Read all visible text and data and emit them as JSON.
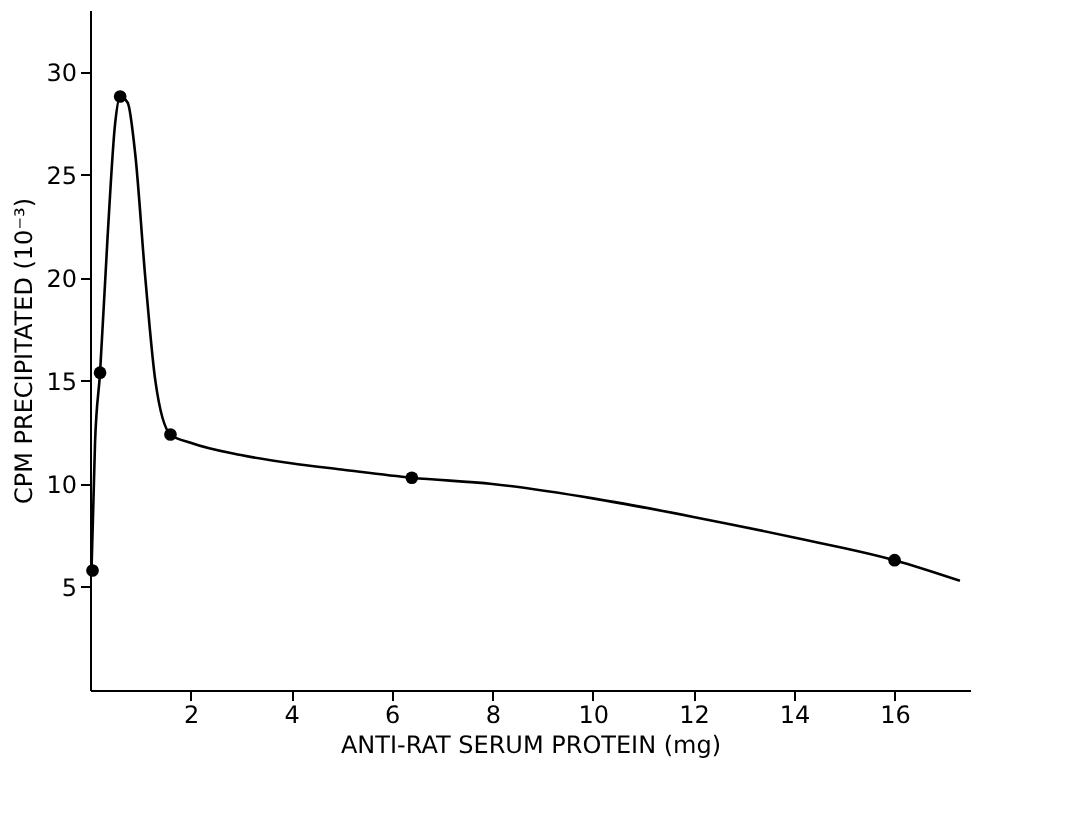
{
  "chart_data": {
    "type": "scatter",
    "xlabel": "ANTI-RAT SERUM PROTEIN  (mg)",
    "ylabel": "CPM PRECIPITATED (10⁻³)",
    "xlim": [
      0,
      17.5
    ],
    "ylim": [
      0,
      33
    ],
    "xticks": [
      2,
      4,
      6,
      8,
      10,
      12,
      14,
      16
    ],
    "yticks": [
      5,
      10,
      15,
      20,
      25,
      30
    ],
    "grid": false,
    "series": [
      {
        "color": "#000000",
        "marker": "circle",
        "x": [
          0.05,
          0.2,
          0.6,
          1.6,
          6.4,
          16
        ],
        "values": [
          5.8,
          15.4,
          28.8,
          12.4,
          10.3,
          6.3
        ]
      },
      {
        "type": "line",
        "color": "#000000",
        "marker": "none",
        "line_style": "solid",
        "x": [
          0.03,
          0.1,
          0.2,
          0.35,
          0.5,
          0.6,
          0.75,
          0.9,
          1.1,
          1.3,
          1.6,
          2,
          3,
          4,
          5,
          6.4,
          8,
          10,
          12,
          14,
          16,
          17.3
        ],
        "values": [
          5.8,
          12,
          15.4,
          22,
          27.5,
          28.8,
          28.5,
          26,
          20,
          15,
          12.4,
          12,
          11.4,
          11,
          10.7,
          10.3,
          10,
          9.3,
          8.4,
          7.4,
          6.3,
          5.3
        ]
      }
    ]
  }
}
